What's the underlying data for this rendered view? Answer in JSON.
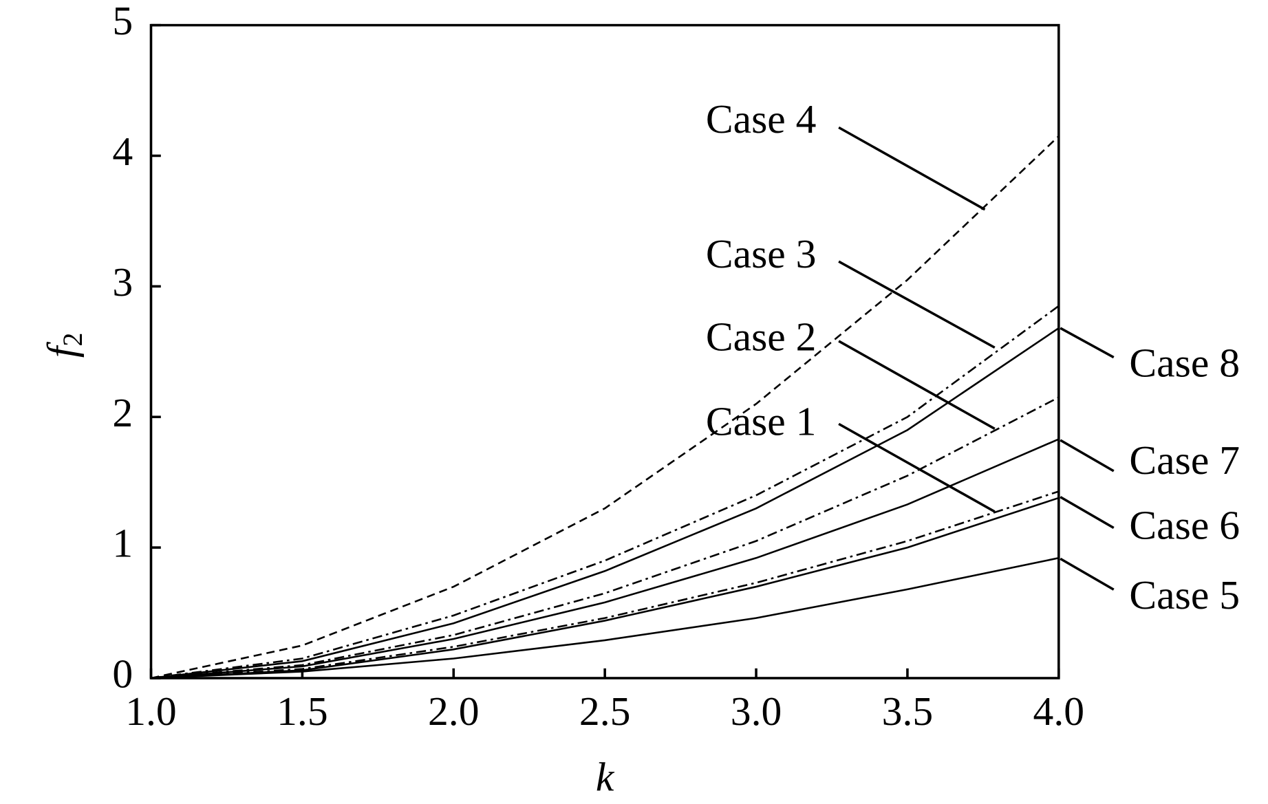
{
  "chart_data": {
    "type": "line",
    "xlabel": "k",
    "ylabel": "f",
    "ylabel_subscript": "2",
    "x": [
      1.0,
      1.5,
      2.0,
      2.5,
      3.0,
      3.5,
      4.0
    ],
    "xlim": [
      1.0,
      4.0
    ],
    "xticks": [
      {
        "value": 1.0,
        "label": "1.0"
      },
      {
        "value": 1.5,
        "label": "1.5"
      },
      {
        "value": 2.0,
        "label": "2.0"
      },
      {
        "value": 2.5,
        "label": "2.5"
      },
      {
        "value": 3.0,
        "label": "3.0"
      },
      {
        "value": 3.5,
        "label": "3.5"
      },
      {
        "value": 4.0,
        "label": "4.0"
      }
    ],
    "ylim": [
      0,
      5
    ],
    "yticks": [
      0,
      1,
      2,
      3,
      4,
      5
    ],
    "grid": false,
    "series": [
      {
        "name": "Case 1",
        "color": "#000000",
        "dash": "dashdot",
        "values": [
          0,
          0.07,
          0.24,
          0.46,
          0.73,
          1.05,
          1.43
        ]
      },
      {
        "name": "Case 2",
        "color": "#000000",
        "dash": "dashdot",
        "values": [
          0,
          0.1,
          0.33,
          0.65,
          1.05,
          1.55,
          2.15
        ]
      },
      {
        "name": "Case 3",
        "color": "#000000",
        "dash": "dashdot",
        "values": [
          0,
          0.15,
          0.48,
          0.9,
          1.4,
          2.0,
          2.85
        ]
      },
      {
        "name": "Case 4",
        "color": "#000000",
        "dash": "dashed",
        "values": [
          0,
          0.25,
          0.7,
          1.3,
          2.1,
          3.05,
          4.15
        ]
      },
      {
        "name": "Case 5",
        "color": "#000000",
        "dash": "solid",
        "values": [
          0,
          0.05,
          0.15,
          0.29,
          0.46,
          0.68,
          0.92
        ]
      },
      {
        "name": "Case 6",
        "color": "#000000",
        "dash": "solid",
        "values": [
          0,
          0.06,
          0.22,
          0.44,
          0.7,
          1.0,
          1.38
        ]
      },
      {
        "name": "Case 7",
        "color": "#000000",
        "dash": "solid",
        "values": [
          0,
          0.09,
          0.3,
          0.58,
          0.92,
          1.33,
          1.83
        ]
      },
      {
        "name": "Case 8",
        "color": "#000000",
        "dash": "solid",
        "values": [
          0,
          0.13,
          0.42,
          0.82,
          1.3,
          1.9,
          2.68
        ]
      }
    ]
  }
}
